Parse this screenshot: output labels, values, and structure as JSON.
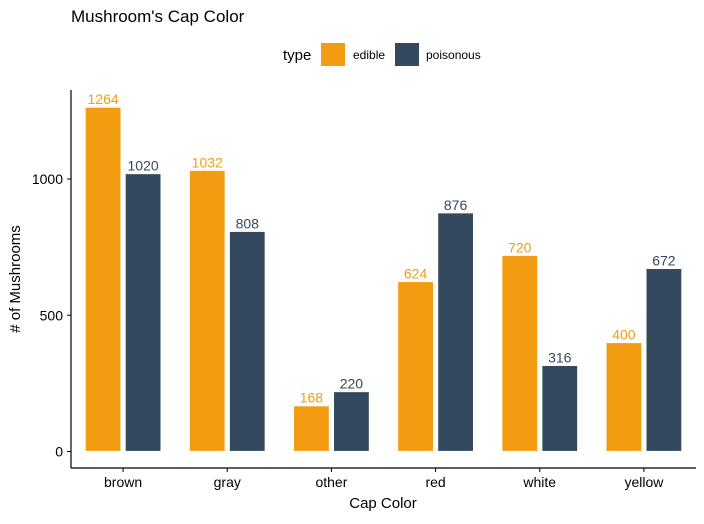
{
  "chart_data": {
    "type": "bar",
    "title": "Mushroom's Cap Color",
    "xlabel": "Cap Color",
    "ylabel": "# of Mushrooms",
    "categories": [
      "brown",
      "gray",
      "other",
      "red",
      "white",
      "yellow"
    ],
    "series": [
      {
        "name": "edible",
        "color": "#f39c12",
        "values": [
          1264,
          1032,
          168,
          624,
          720,
          400
        ]
      },
      {
        "name": "poisonous",
        "color": "#34495e",
        "values": [
          1020,
          808,
          220,
          876,
          316,
          672
        ]
      }
    ],
    "legend": {
      "title": "type",
      "position": "top"
    },
    "yticks": [
      0,
      500,
      1000
    ],
    "ylim": [
      0,
      1264
    ],
    "grid": false
  }
}
